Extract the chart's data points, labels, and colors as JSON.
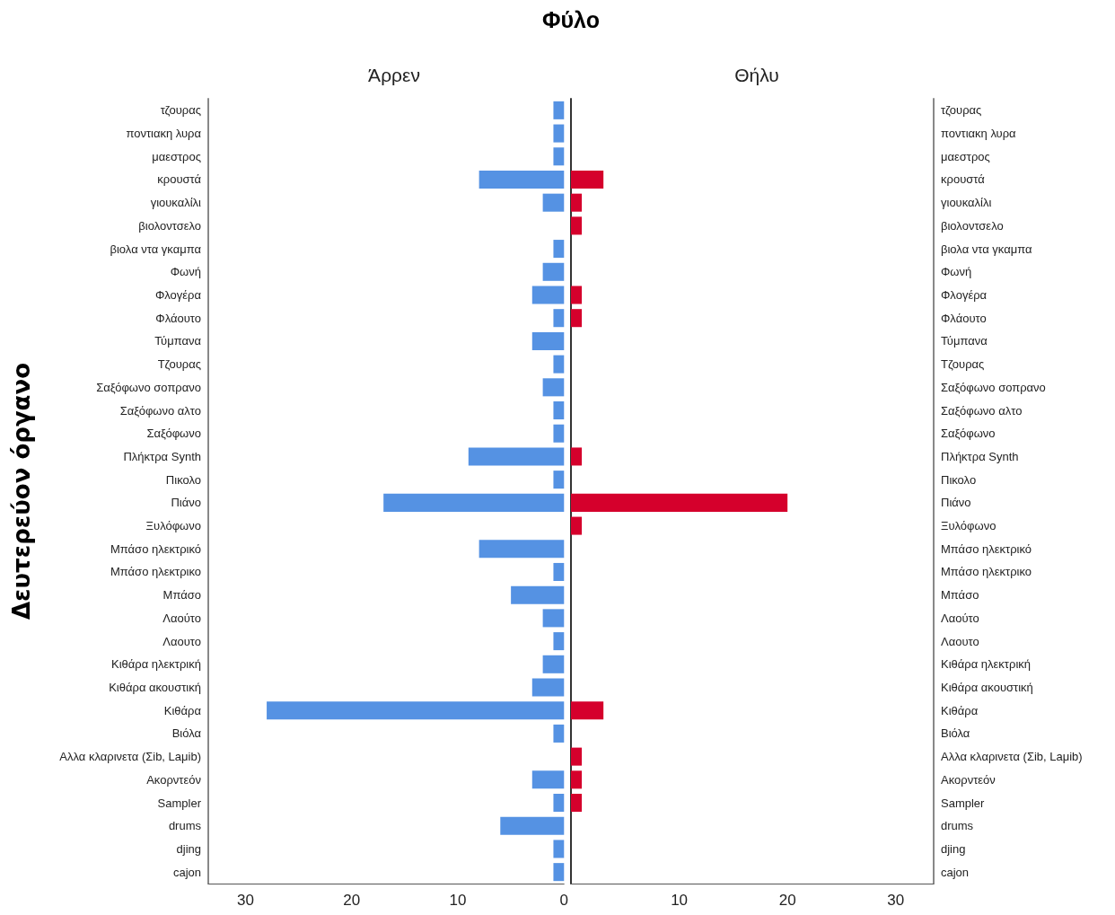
{
  "chart_data": [
    {
      "type": "bar",
      "orientation": "horizontal",
      "title": "Άρρεν",
      "ylabel": "Δευτερεύον όργανο",
      "annotations": [
        "Φύλο"
      ],
      "categories": [
        "τζουρας",
        "ποντιακη λυρα",
        "μαεστρος",
        "κρουστά",
        "γιουκαλίλι",
        "βιολοντσελο",
        "βιολα ντα γκαμπα",
        "Φωνή",
        "Φλογέρα",
        "Φλάουτο",
        "Τύμπανα",
        "Τζουρας",
        "Σαξόφωνο σοπρανο",
        "Σαξόφωνο αλτο",
        "Σαξόφωνο",
        "Πλήκτρα Synth",
        "Πικολο",
        "Πιάνο",
        "Ξυλόφωνο",
        "Μπάσο ηλεκτρικό",
        "Μπάσο ηλεκτρικο",
        "Μπάσο",
        "Λαούτο",
        "Λαουτο",
        "Κιθάρα ηλεκτρική",
        "Κιθάρα ακουστική",
        "Κιθάρα",
        "Βιόλα",
        "Αλλα κλαρινετα (Σib, Laμib)",
        "Ακορντεόν",
        "Sampler",
        "drums",
        "djing",
        "cajon"
      ],
      "values": [
        1,
        1,
        1,
        8,
        2,
        0,
        1,
        2,
        3,
        1,
        3,
        1,
        2,
        1,
        1,
        9,
        1,
        17,
        0,
        8,
        1,
        5,
        2,
        1,
        2,
        3,
        28,
        1,
        0,
        3,
        1,
        6,
        1,
        1
      ],
      "color": "#5592e3",
      "xlim": [
        33.5,
        0
      ],
      "xticks": [
        0,
        10,
        20,
        30
      ],
      "grid": false
    },
    {
      "type": "bar",
      "orientation": "horizontal",
      "title": "Θήλυ",
      "categories": [
        "τζουρας",
        "ποντιακη λυρα",
        "μαεστρος",
        "κρουστά",
        "γιουκαλίλι",
        "βιολοντσελο",
        "βιολα ντα γκαμπα",
        "Φωνή",
        "Φλογέρα",
        "Φλάουτο",
        "Τύμπανα",
        "Τζουρας",
        "Σαξόφωνο σοπρανο",
        "Σαξόφωνο αλτο",
        "Σαξόφωνο",
        "Πλήκτρα Synth",
        "Πικολο",
        "Πιάνο",
        "Ξυλόφωνο",
        "Μπάσο ηλεκτρικό",
        "Μπάσο ηλεκτρικο",
        "Μπάσο",
        "Λαούτο",
        "Λαουτο",
        "Κιθάρα ηλεκτρική",
        "Κιθάρα ακουστική",
        "Κιθάρα",
        "Βιόλα",
        "Αλλα κλαρινετα (Σib, Laμib)",
        "Ακορντεόν",
        "Sampler",
        "drums",
        "djing",
        "cajon"
      ],
      "values": [
        0,
        0,
        0,
        3,
        1,
        1,
        0,
        0,
        1,
        1,
        0,
        0,
        0,
        0,
        0,
        1,
        0,
        20,
        1,
        0,
        0,
        0,
        0,
        0,
        0,
        0,
        3,
        0,
        1,
        1,
        1,
        0,
        0,
        0
      ],
      "color": "#d5002c",
      "xlim": [
        0,
        33.5
      ],
      "xticks": [
        10,
        20,
        30
      ],
      "grid": false
    }
  ]
}
